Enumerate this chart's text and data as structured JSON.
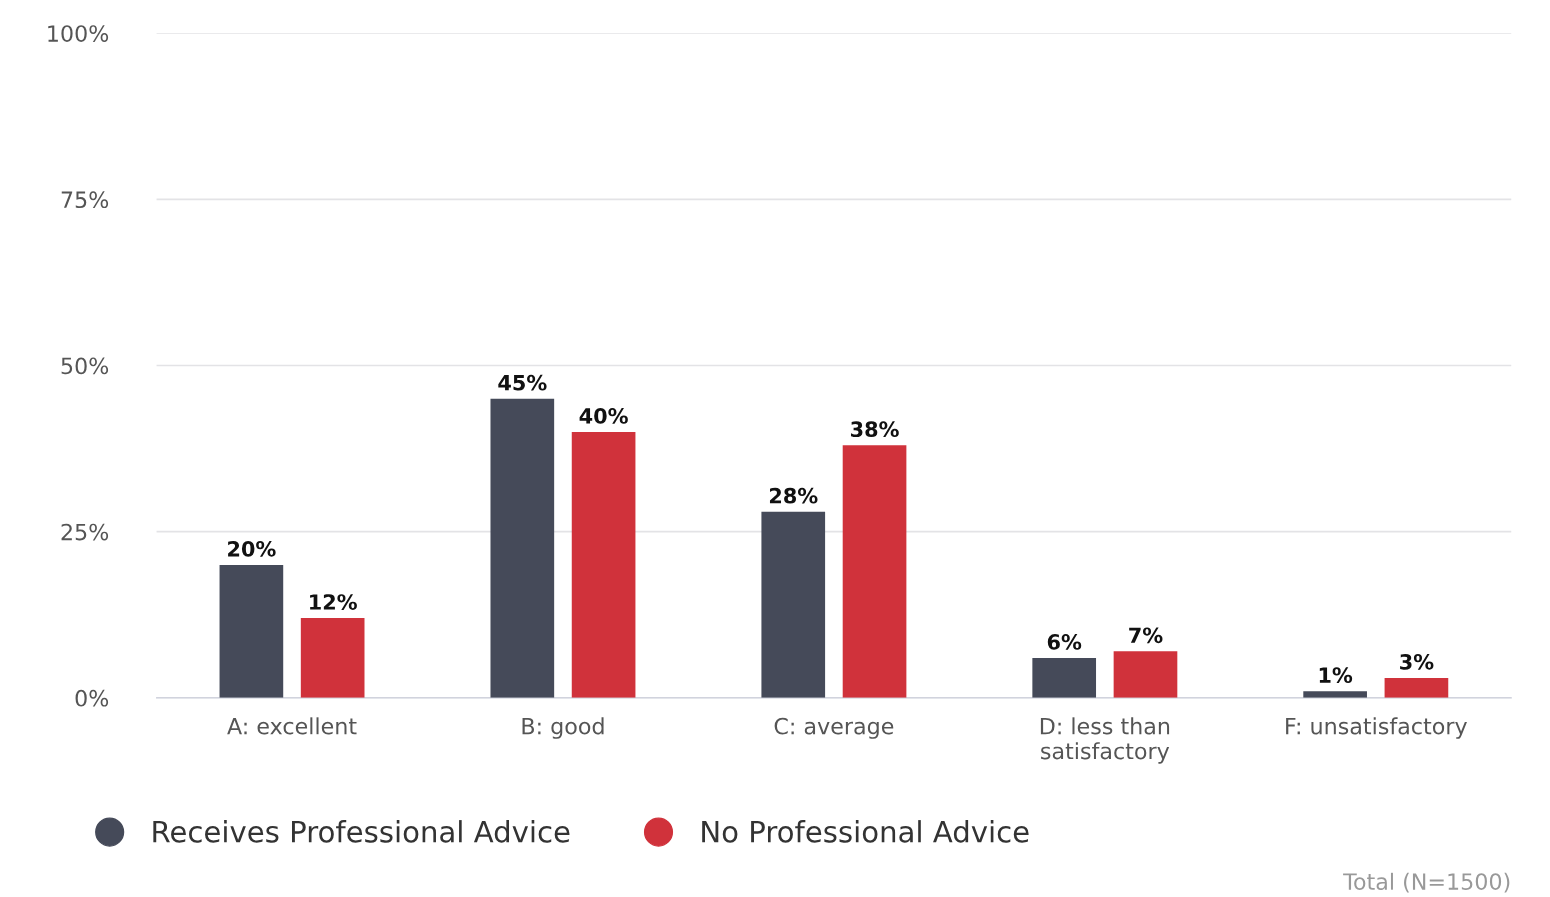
{
  "chart_data": {
    "type": "bar",
    "categories": [
      "A: excellent",
      "B: good",
      "C: average",
      "D: less than\nsatisfactory",
      "F: unsatisfactory"
    ],
    "series": [
      {
        "name": "Receives Professional Advice",
        "color": "#454a59",
        "values": [
          20,
          45,
          28,
          6,
          1
        ],
        "value_labels": [
          "20%",
          "45%",
          "28%",
          "6%",
          "1%"
        ]
      },
      {
        "name": "No Professional Advice",
        "color": "#d0323b",
        "values": [
          12,
          40,
          38,
          7,
          3
        ],
        "value_labels": [
          "12%",
          "40%",
          "38%",
          "7%",
          "3%"
        ]
      }
    ],
    "ylim": [
      0,
      100
    ],
    "yticks": [
      {
        "value": 0,
        "label": "0%"
      },
      {
        "value": 25,
        "label": "25%"
      },
      {
        "value": 50,
        "label": "50%"
      },
      {
        "value": 75,
        "label": "75%"
      },
      {
        "value": 100,
        "label": "100%"
      }
    ],
    "grid": "y",
    "legend": "bottom left",
    "annotations": [
      "Total (N=1500)"
    ]
  }
}
